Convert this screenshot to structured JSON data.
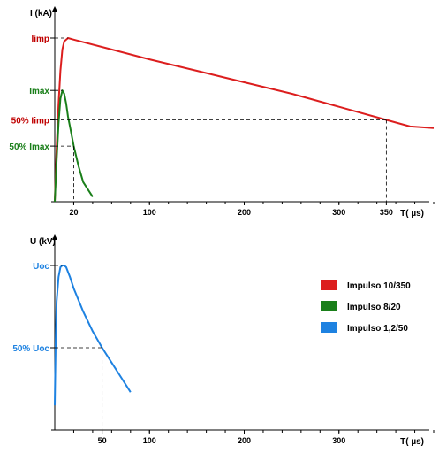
{
  "colors": {
    "impulse_10_350": "#dc1e1e",
    "impulse_8_20": "#1a7f1a",
    "impulse_1_2_50": "#1e82e1",
    "label_current": "#c00000",
    "label_current_green": "#1a7f1a"
  },
  "chart_data": [
    {
      "type": "line",
      "xlabel": "T( µs)",
      "ylabel": "I (kA)",
      "xlim": [
        0,
        400
      ],
      "x_ticks": [
        20,
        100,
        200,
        300,
        350
      ],
      "y_level_labels": [
        {
          "label": "Iimp",
          "fraction": 1.0,
          "color_key": "label_current"
        },
        {
          "label": "Imax",
          "fraction": 0.68,
          "color_key": "label_current_green"
        },
        {
          "label": "50% Iimp",
          "fraction": 0.5,
          "color_key": "label_current"
        },
        {
          "label": "50% Imax",
          "fraction": 0.34,
          "color_key": "label_current_green"
        }
      ],
      "series": [
        {
          "name": "Impulso 10/350",
          "color_key": "impulse_10_350",
          "x": [
            0,
            2,
            4,
            6,
            8,
            10,
            14,
            20,
            60,
            100,
            150,
            200,
            250,
            300,
            350,
            375,
            400
          ],
          "y": [
            0,
            0.32,
            0.6,
            0.8,
            0.93,
            0.98,
            1.0,
            0.99,
            0.93,
            0.87,
            0.8,
            0.73,
            0.66,
            0.58,
            0.5,
            0.46,
            0.45
          ]
        },
        {
          "name": "Impulso 8/20",
          "color_key": "impulse_8_20",
          "x": [
            0,
            2,
            4,
            6,
            8,
            10,
            12,
            14,
            16,
            20,
            25,
            30,
            40
          ],
          "y": [
            0,
            0.25,
            0.48,
            0.63,
            0.68,
            0.66,
            0.6,
            0.52,
            0.46,
            0.34,
            0.22,
            0.12,
            0.03
          ]
        }
      ],
      "guides": [
        {
          "x": 20,
          "y_fraction_of": "Imax",
          "y": 0.34
        },
        {
          "x": 350,
          "y": 0.5
        }
      ]
    },
    {
      "type": "line",
      "xlabel": "T( µs)",
      "ylabel": "U (kV)",
      "xlim": [
        0,
        400
      ],
      "x_ticks": [
        50,
        100,
        200,
        300
      ],
      "y_level_labels": [
        {
          "label": "Uoc",
          "fraction": 1.0,
          "color_key": "impulse_1_2_50"
        },
        {
          "label": "50% Uoc",
          "fraction": 0.5,
          "color_key": "impulse_1_2_50"
        }
      ],
      "series": [
        {
          "name": "Impulso 1,2/50",
          "color_key": "impulse_1_2_50",
          "x": [
            0,
            1,
            2,
            4,
            6,
            8,
            10,
            12,
            14,
            16,
            20,
            30,
            40,
            50,
            60,
            70,
            80
          ],
          "y": [
            0.15,
            0.55,
            0.78,
            0.93,
            0.99,
            1.0,
            1.0,
            0.99,
            0.96,
            0.93,
            0.86,
            0.72,
            0.6,
            0.5,
            0.41,
            0.32,
            0.23
          ]
        }
      ],
      "guides": [
        {
          "x": 50,
          "y": 0.5
        }
      ]
    }
  ],
  "legend": [
    {
      "label": "Impulso 10/350",
      "color_key": "impulse_10_350"
    },
    {
      "label": "Impulso 8/20",
      "color_key": "impulse_8_20"
    },
    {
      "label": "Impulso 1,2/50",
      "color_key": "impulse_1_2_50"
    }
  ]
}
